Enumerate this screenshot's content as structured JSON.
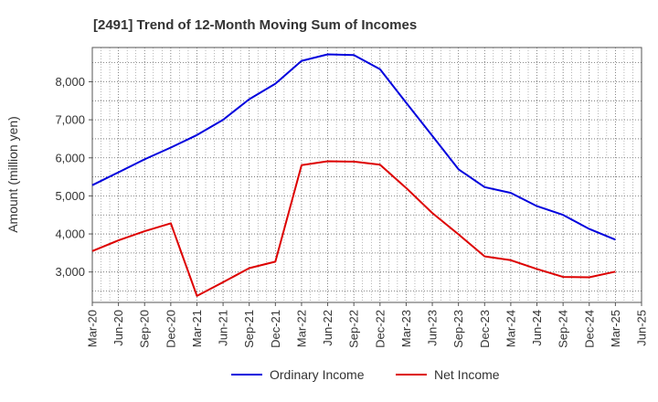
{
  "chart_data": {
    "type": "line",
    "title": "[2491]  Trend of 12-Month Moving Sum of Incomes",
    "xlabel": "",
    "ylabel": "Amount (million yen)",
    "ylim": [
      2200,
      8900
    ],
    "yticks": [
      3000,
      4000,
      5000,
      6000,
      7000,
      8000
    ],
    "ytick_labels": [
      "3,000",
      "4,000",
      "5,000",
      "6,000",
      "7,000",
      "8,000"
    ],
    "grid": true,
    "legend_position": "bottom-center",
    "categories": [
      "Mar-20",
      "Jun-20",
      "Sep-20",
      "Dec-20",
      "Mar-21",
      "Jun-21",
      "Sep-21",
      "Dec-21",
      "Mar-22",
      "Jun-22",
      "Sep-22",
      "Dec-22",
      "Mar-23",
      "Jun-23",
      "Sep-23",
      "Dec-23",
      "Mar-24",
      "Jun-24",
      "Sep-24",
      "Dec-24",
      "Mar-25",
      "Jun-25"
    ],
    "series": [
      {
        "name": "Ordinary Income",
        "color": "#0000dd",
        "values": [
          5280,
          5620,
          5960,
          6270,
          6600,
          7000,
          7540,
          7950,
          8550,
          8720,
          8700,
          8330,
          7450,
          6580,
          5700,
          5230,
          5080,
          4730,
          4500,
          4130,
          3850,
          null
        ]
      },
      {
        "name": "Net Income",
        "color": "#dd0000",
        "values": [
          3550,
          3830,
          4070,
          4280,
          2370,
          2730,
          3100,
          3270,
          5810,
          5910,
          5900,
          5820,
          5210,
          4550,
          3990,
          3410,
          3310,
          3080,
          2870,
          2860,
          3010,
          null
        ]
      }
    ]
  }
}
